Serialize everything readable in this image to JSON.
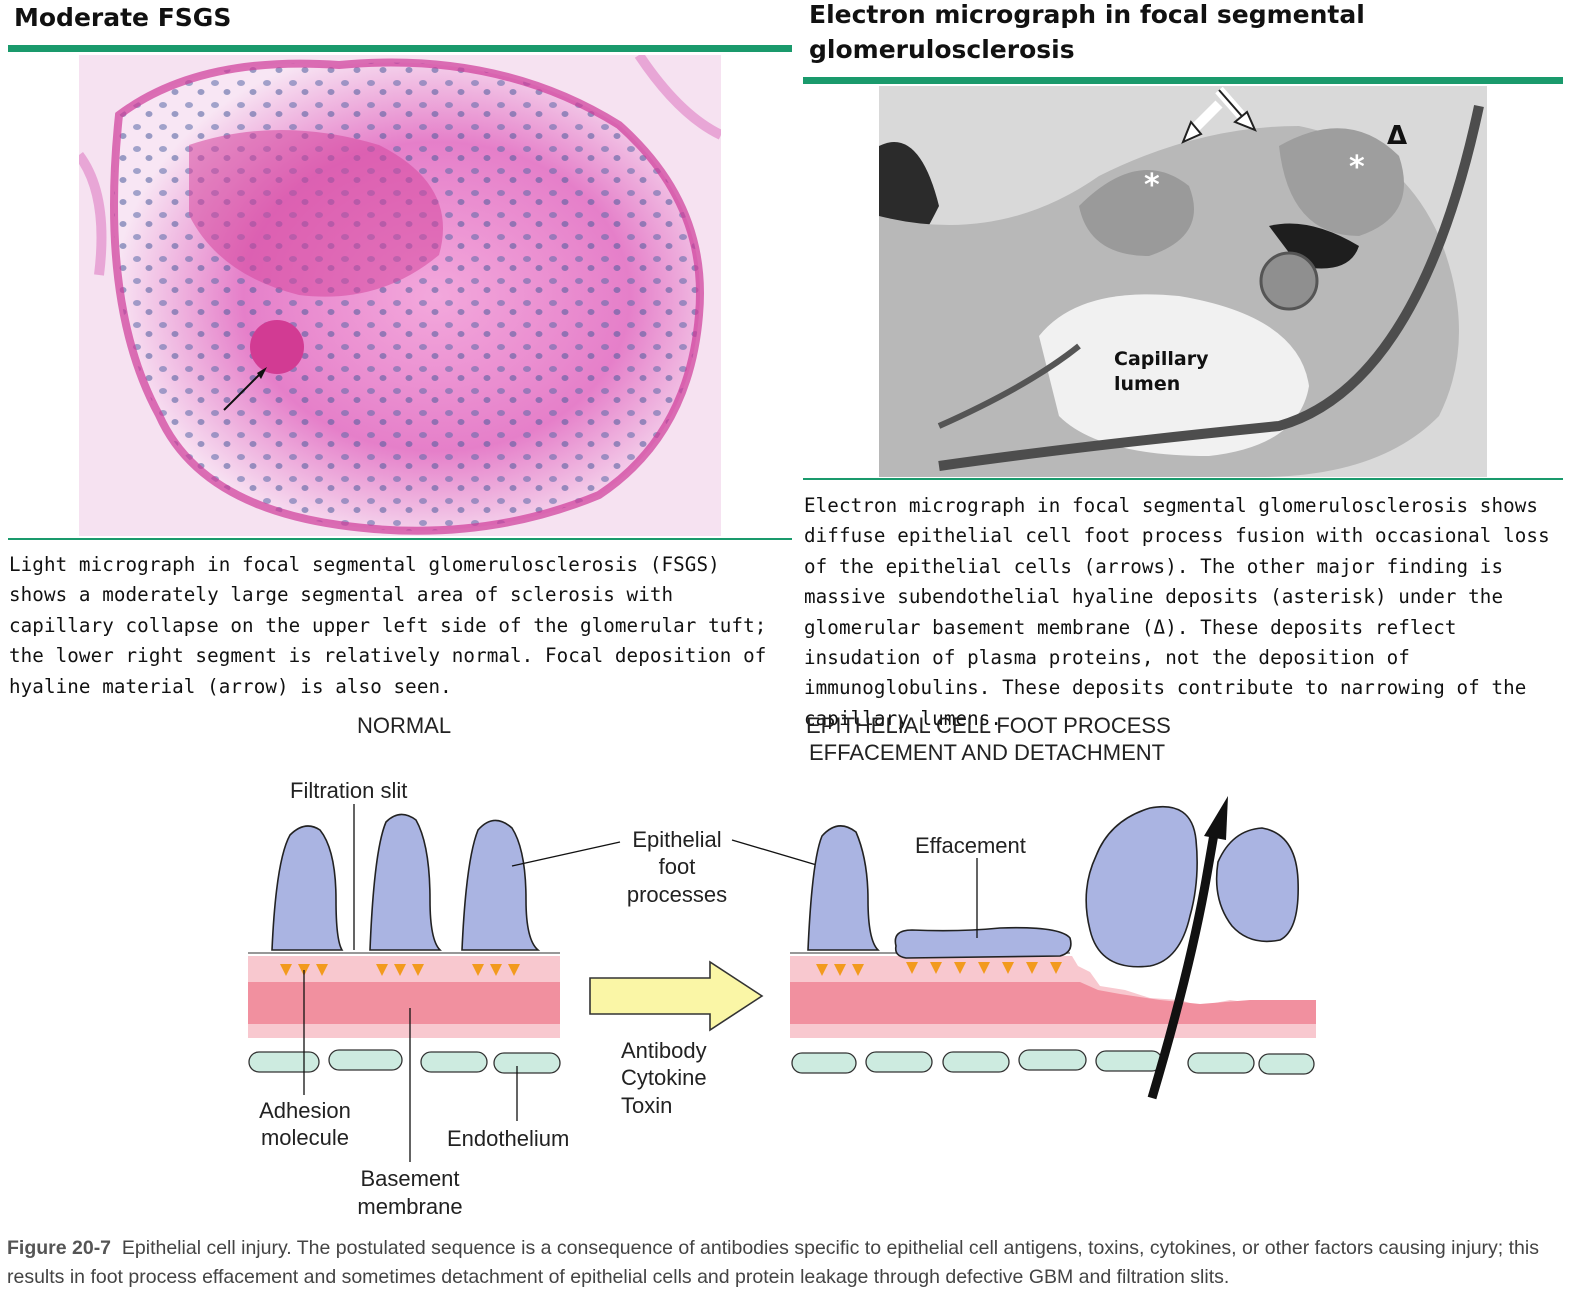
{
  "left_panel": {
    "title": "Moderate FSGS",
    "caption": "Light micrograph in focal segmental glomerulosclerosis (FSGS) shows a moderately large segmental area of sclerosis with capillary collapse on the upper left side of the glomerular tuft; the lower right segment is relatively normal. Focal deposition of hyaline material (arrow) is also seen."
  },
  "right_panel": {
    "title_line1": "Electron micrograph in focal segmental",
    "title_line2": "glomerulosclerosis",
    "image_label_line1": "Capillary",
    "image_label_line2": "lumen",
    "asterisk": "*",
    "delta": "Δ",
    "caption": "Electron micrograph in focal segmental glomerulosclerosis shows diffuse epithelial cell foot process fusion with occasional loss of the epithelial cells (arrows). The other major finding is massive subendothelial hyaline deposits (asterisk) under the glomerular basement membrane (Δ). These deposits reflect insudation of plasma proteins, not the deposition of immunoglobulins. These deposits contribute to narrowing of the capillary lumens."
  },
  "diagram": {
    "normal_title": "NORMAL",
    "injured_title_line1": "EPITHELIAL CELL FOOT PROCESS",
    "injured_title_line2": "EFFACEMENT AND DETACHMENT",
    "labels": {
      "filtration_slit": "Filtration slit",
      "epithelial_line1": "Epithelial",
      "epithelial_line2": "foot",
      "epithelial_line3": "processes",
      "effacement": "Effacement",
      "adhesion_line1": "Adhesion",
      "adhesion_line2": "molecule",
      "endothelium": "Endothelium",
      "basement_line1": "Basement",
      "basement_line2": "membrane",
      "antibody": "Antibody",
      "cytokine": "Cytokine",
      "toxin": "Toxin"
    },
    "colors": {
      "cell_fill": "#aab4e2",
      "gbm_pink": "#f1909f",
      "gbm_light": "#f8c8cf",
      "endothelium": "#cdebe0",
      "adhesion": "#f29a1e",
      "arrow_fill": "#faf6a6",
      "rule_green": "#1a9a6c"
    }
  },
  "figure_caption": {
    "label": "Figure 20-7",
    "text": "Epithelial cell injury. The postulated sequence is a consequence of antibodies specific to epithelial cell antigens, toxins, cytokines, or other factors causing injury; this results in foot process effacement and sometimes detachment of epithelial cells and protein leakage through defective GBM and filtration slits."
  }
}
